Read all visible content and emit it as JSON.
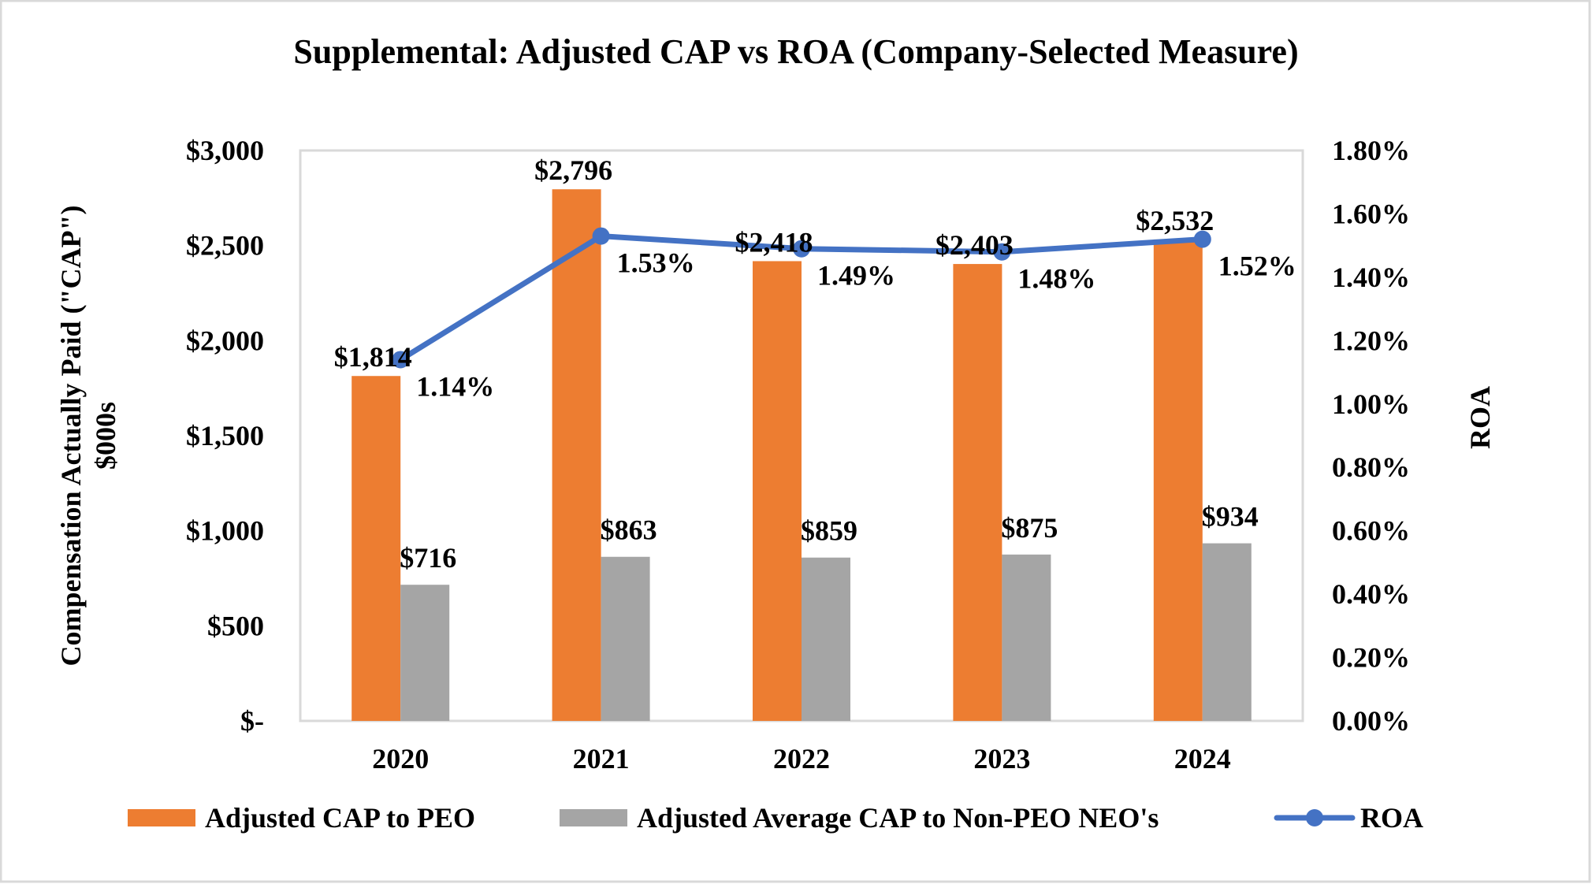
{
  "chart_data": {
    "type": "bar",
    "title": "Supplemental:  Adjusted CAP vs ROA (Company-Selected Measure)",
    "categories": [
      "2020",
      "2021",
      "2022",
      "2023",
      "2024"
    ],
    "y_left": {
      "label_lines": [
        "Compensation  Actually Paid (\"CAP\")",
        "$000s"
      ],
      "range": [
        0,
        3000
      ],
      "ticks": [
        0,
        500,
        1000,
        1500,
        2000,
        2500,
        3000
      ],
      "tick_labels": [
        "$-",
        "$500",
        "$1,000",
        "$1,500",
        "$2,000",
        "$2,500",
        "$3,000"
      ]
    },
    "y_right": {
      "label": "ROA",
      "range": [
        0,
        1.8
      ],
      "ticks": [
        0,
        0.2,
        0.4,
        0.6,
        0.8,
        1.0,
        1.2,
        1.4,
        1.6,
        1.8
      ],
      "tick_labels": [
        "0.00%",
        "0.20%",
        "0.40%",
        "0.60%",
        "0.80%",
        "1.00%",
        "1.20%",
        "1.40%",
        "1.60%",
        "1.80%"
      ]
    },
    "series": [
      {
        "name": "Adjusted CAP to PEO",
        "kind": "bar",
        "axis": "left",
        "color": "#ED7D31",
        "values": [
          1814,
          2796,
          2418,
          2403,
          2532
        ],
        "labels": [
          "$1,814",
          "$2,796",
          "$2,418",
          "$2,403",
          "$2,532"
        ]
      },
      {
        "name": "Adjusted Average CAP to Non-PEO NEO's",
        "kind": "bar",
        "axis": "left",
        "color": "#A5A5A5",
        "values": [
          716,
          863,
          859,
          875,
          934
        ],
        "labels": [
          "$716",
          "$863",
          "$859",
          "$875",
          "$934"
        ]
      },
      {
        "name": "ROA",
        "kind": "line",
        "axis": "right",
        "color": "#4472C4",
        "values": [
          1.14,
          1.53,
          1.49,
          1.48,
          1.52
        ],
        "labels": [
          "1.14%",
          "1.53%",
          "1.49%",
          "1.48%",
          "1.52%"
        ]
      }
    ],
    "grid": false,
    "legend_position": "bottom"
  }
}
